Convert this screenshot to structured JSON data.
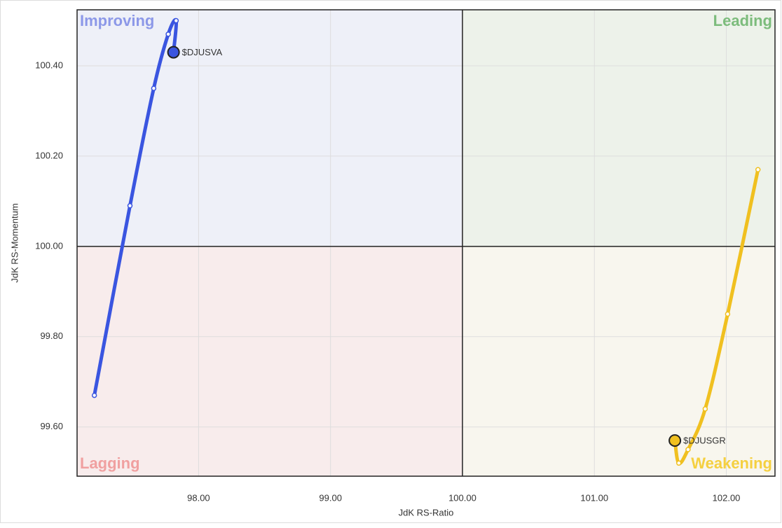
{
  "chart_data": {
    "type": "scatter",
    "x_label": "JdK RS-Ratio",
    "y_label": "JdK RS-Momentum",
    "xlim": [
      97.079,
      102.369
    ],
    "ylim": [
      99.491,
      100.524
    ],
    "xticks": [
      {
        "value": 98,
        "label": "98.00"
      },
      {
        "value": 99,
        "label": "99.00"
      },
      {
        "value": 100,
        "label": "100.00"
      },
      {
        "value": 101,
        "label": "101.00"
      },
      {
        "value": 102,
        "label": "102.00"
      }
    ],
    "yticks": [
      {
        "value": 99.6,
        "label": "99.60"
      },
      {
        "value": 99.8,
        "label": "99.80"
      },
      {
        "value": 100,
        "label": "100.00"
      },
      {
        "value": 100.2,
        "label": "100.20"
      },
      {
        "value": 100.4,
        "label": "100.40"
      }
    ],
    "center": [
      100,
      100
    ],
    "grid": true,
    "quadrants": [
      {
        "name": "Improving",
        "color": "#8c98e8",
        "fill": "#eef0f8",
        "corner": "top-left"
      },
      {
        "name": "Leading",
        "color": "#7cbc7c",
        "fill": "#edf2ea",
        "corner": "top-right"
      },
      {
        "name": "Lagging",
        "color": "#f0a0a0",
        "fill": "#f8ecec",
        "corner": "bottom-left"
      },
      {
        "name": "Weakening",
        "color": "#f5d040",
        "fill": "#f8f6ee",
        "corner": "bottom-right"
      }
    ],
    "series": [
      {
        "name": "$DJUSVA",
        "color": "#3a55e0",
        "x": [
          97.21,
          97.48,
          97.66,
          97.77,
          97.83,
          97.81
        ],
        "values": [
          99.67,
          100.09,
          100.35,
          100.47,
          100.5,
          100.43
        ]
      },
      {
        "name": "$DJUSGR",
        "color": "#f0c020",
        "x": [
          102.24,
          102.01,
          101.84,
          101.71,
          101.64,
          101.61
        ],
        "values": [
          100.17,
          99.85,
          99.64,
          99.55,
          99.52,
          99.57
        ]
      }
    ]
  }
}
